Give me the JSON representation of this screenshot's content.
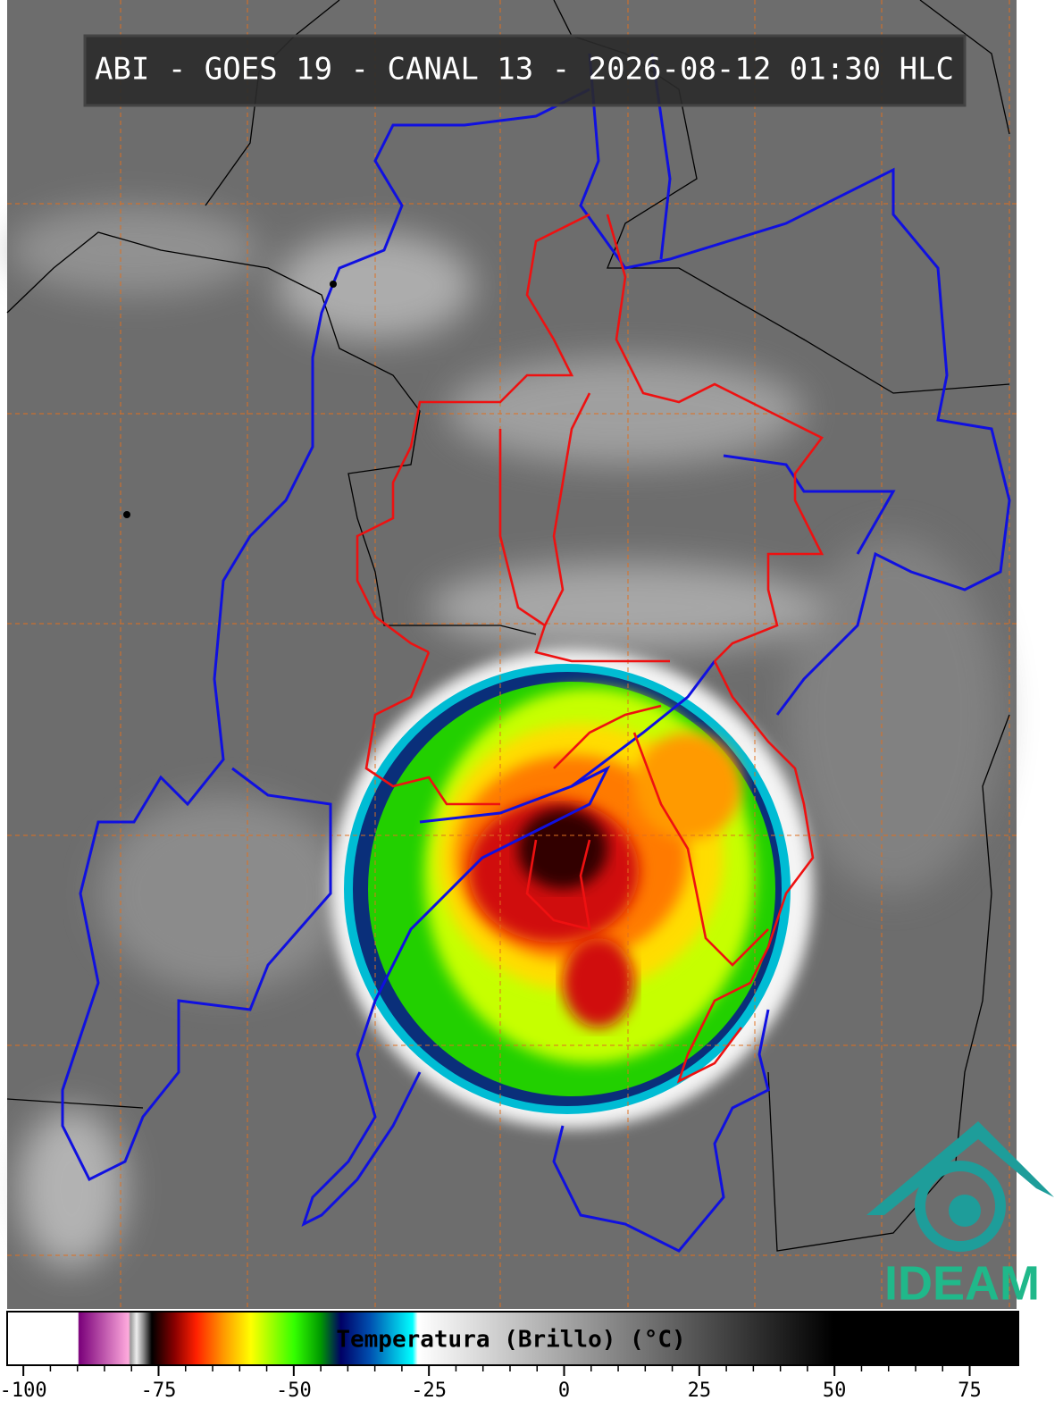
{
  "header": {
    "title": "ABI - GOES 19 - CANAL 13 - 2026-08-12 01:30 HLC"
  },
  "colorbar": {
    "label": "Temperatura (Brillo) (°C)",
    "lim": [
      -103,
      84
    ],
    "ticks": [
      -100,
      -75,
      -50,
      -25,
      0,
      25,
      50,
      75
    ]
  },
  "logo": {
    "text": "IDEAM"
  }
}
